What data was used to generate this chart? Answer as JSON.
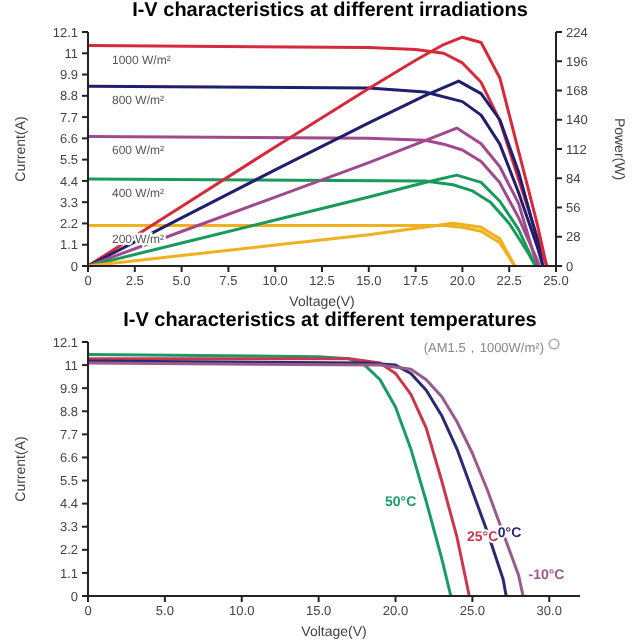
{
  "chart_data": [
    {
      "type": "line",
      "title": "I-V characteristics at different irradiations",
      "xlabel": "Voltage(V)",
      "ylabel": "Current(A)",
      "y2label": "Power(W)",
      "xlim": [
        0,
        25
      ],
      "xticks": [
        0,
        2.5,
        {
          "value": 5,
          "label": "5.0"
        },
        7.5,
        {
          "value": 10,
          "label": "10.0"
        },
        12.5,
        {
          "value": 15,
          "label": "15.0"
        },
        17.5,
        {
          "value": 20,
          "label": "20.0"
        },
        22.5,
        {
          "value": 25,
          "label": "25.0"
        }
      ],
      "ylim": [
        0,
        12.1
      ],
      "yticks": [
        0,
        1.1,
        2.2,
        3.3,
        4.4,
        5.5,
        6.6,
        7.7,
        8.8,
        9.9,
        11,
        12.1
      ],
      "y2lim": [
        0,
        224
      ],
      "y2ticks": [
        0,
        28,
        56,
        84,
        112,
        140,
        168,
        196,
        224
      ],
      "grid": false,
      "legend": false,
      "series": [
        {
          "name": "1000 W/m²",
          "color": "#d42a3c",
          "x": [
            0,
            15,
            17.5,
            19,
            20,
            21,
            22,
            23,
            24,
            24.5
          ],
          "values": [
            11.4,
            11.3,
            11.2,
            11,
            10.5,
            9.5,
            7.5,
            4.5,
            1.5,
            0
          ]
        },
        {
          "name": "800 W/m²",
          "color": "#1f1f6e",
          "x": [
            0,
            15,
            18,
            20,
            21,
            22,
            23,
            24,
            24.3
          ],
          "values": [
            9.3,
            9.2,
            9,
            8.5,
            7.8,
            6.3,
            3.8,
            1,
            0
          ]
        },
        {
          "name": "600 W/m²",
          "color": "#a04a8c",
          "x": [
            0,
            15,
            18,
            19,
            20,
            21,
            22,
            23,
            24,
            24.1
          ],
          "values": [
            6.7,
            6.6,
            6.5,
            6.3,
            6,
            5.4,
            4.3,
            2.5,
            0.3,
            0
          ]
        },
        {
          "name": "400 W/m²",
          "color": "#1a9a5a",
          "x": [
            0,
            18,
            19.5,
            20.5,
            21.5,
            22.5,
            23.5,
            23.9
          ],
          "values": [
            4.5,
            4.4,
            4.2,
            3.9,
            3.3,
            2.2,
            0.7,
            0
          ]
        },
        {
          "name": "200 W/m²",
          "color": "#f0b020",
          "x": [
            0,
            19,
            20,
            21,
            22,
            22.8
          ],
          "values": [
            2.1,
            2.1,
            2,
            1.8,
            1.2,
            0
          ]
        },
        {
          "color": "#d42a3c",
          "axis": "y2",
          "x": [
            0,
            5,
            10,
            15,
            17.5,
            19,
            20,
            21,
            22,
            23,
            24,
            24.5
          ],
          "values": [
            0,
            57,
            114,
            170,
            197,
            212,
            219,
            214,
            180,
            110,
            40,
            0
          ]
        },
        {
          "color": "#1f1f6e",
          "axis": "y2",
          "x": [
            0,
            5,
            10,
            15,
            18,
            19.8,
            21,
            22,
            23,
            24,
            24.3
          ],
          "values": [
            0,
            46,
            92,
            137,
            163,
            177,
            165,
            140,
            90,
            25,
            0
          ]
        },
        {
          "color": "#a04a8c",
          "axis": "y2",
          "x": [
            0,
            5,
            10,
            15,
            18,
            19.7,
            21,
            22,
            23,
            24
          ],
          "values": [
            0,
            33,
            66,
            99,
            120,
            132,
            117,
            95,
            60,
            0
          ]
        },
        {
          "color": "#1a9a5a",
          "axis": "y2",
          "x": [
            0,
            5,
            10,
            15,
            18,
            19.7,
            21,
            22,
            23,
            23.9
          ],
          "values": [
            0,
            22,
            44,
            66,
            80,
            87,
            80,
            62,
            35,
            0
          ]
        },
        {
          "color": "#f0b020",
          "axis": "y2",
          "x": [
            0,
            5,
            10,
            15,
            19.5,
            21,
            22,
            22.8
          ],
          "values": [
            0,
            10,
            20,
            30,
            41,
            37,
            26,
            0
          ]
        }
      ]
    },
    {
      "type": "line",
      "title": "I-V characteristics at different temperatures",
      "subtitle": "(AM1.5，1000W/m²)",
      "xlabel": "Voltage(V)",
      "ylabel": "Current(A)",
      "xlim": [
        0,
        32
      ],
      "xticks": [
        0,
        {
          "value": 5,
          "label": "5.0"
        },
        {
          "value": 10,
          "label": "10.0"
        },
        {
          "value": 15,
          "label": "15.0"
        },
        {
          "value": 20,
          "label": "20.0"
        },
        {
          "value": 25,
          "label": "25.0"
        },
        {
          "value": 30,
          "label": "30.0"
        }
      ],
      "ylim": [
        0,
        12.1
      ],
      "yticks": [
        0,
        1.1,
        2.2,
        3.3,
        4.4,
        5.5,
        6.6,
        7.7,
        8.8,
        9.9,
        11,
        12.1
      ],
      "grid": false,
      "legend": false,
      "series": [
        {
          "name": "50°C",
          "color": "#1a9a6a",
          "x": [
            0,
            15,
            17,
            18,
            19,
            20,
            21,
            22,
            23,
            23.6
          ],
          "values": [
            11.5,
            11.4,
            11.3,
            11,
            10.3,
            9,
            7,
            4.5,
            1.8,
            0
          ]
        },
        {
          "name": "25°C",
          "color": "#c8384c",
          "x": [
            0,
            17,
            19,
            20,
            21,
            22,
            23,
            24,
            24.8
          ],
          "values": [
            11.3,
            11.3,
            11.1,
            10.6,
            9.6,
            8,
            5.5,
            2.8,
            0
          ]
        },
        {
          "name": "0°C",
          "color": "#2a2a70",
          "x": [
            0,
            18,
            20,
            21,
            22,
            23,
            24,
            25,
            26,
            27,
            27.2
          ],
          "values": [
            11.2,
            11.1,
            11,
            10.6,
            9.8,
            8.6,
            7,
            5,
            3,
            0.8,
            0
          ]
        },
        {
          "name": "-10°C",
          "color": "#9a5a8a",
          "x": [
            0,
            19,
            21,
            22,
            23,
            24,
            25,
            26,
            27,
            28,
            28.3
          ],
          "values": [
            11.1,
            11,
            10.8,
            10.3,
            9.5,
            8.3,
            6.8,
            5,
            3,
            1,
            0
          ]
        }
      ]
    }
  ]
}
